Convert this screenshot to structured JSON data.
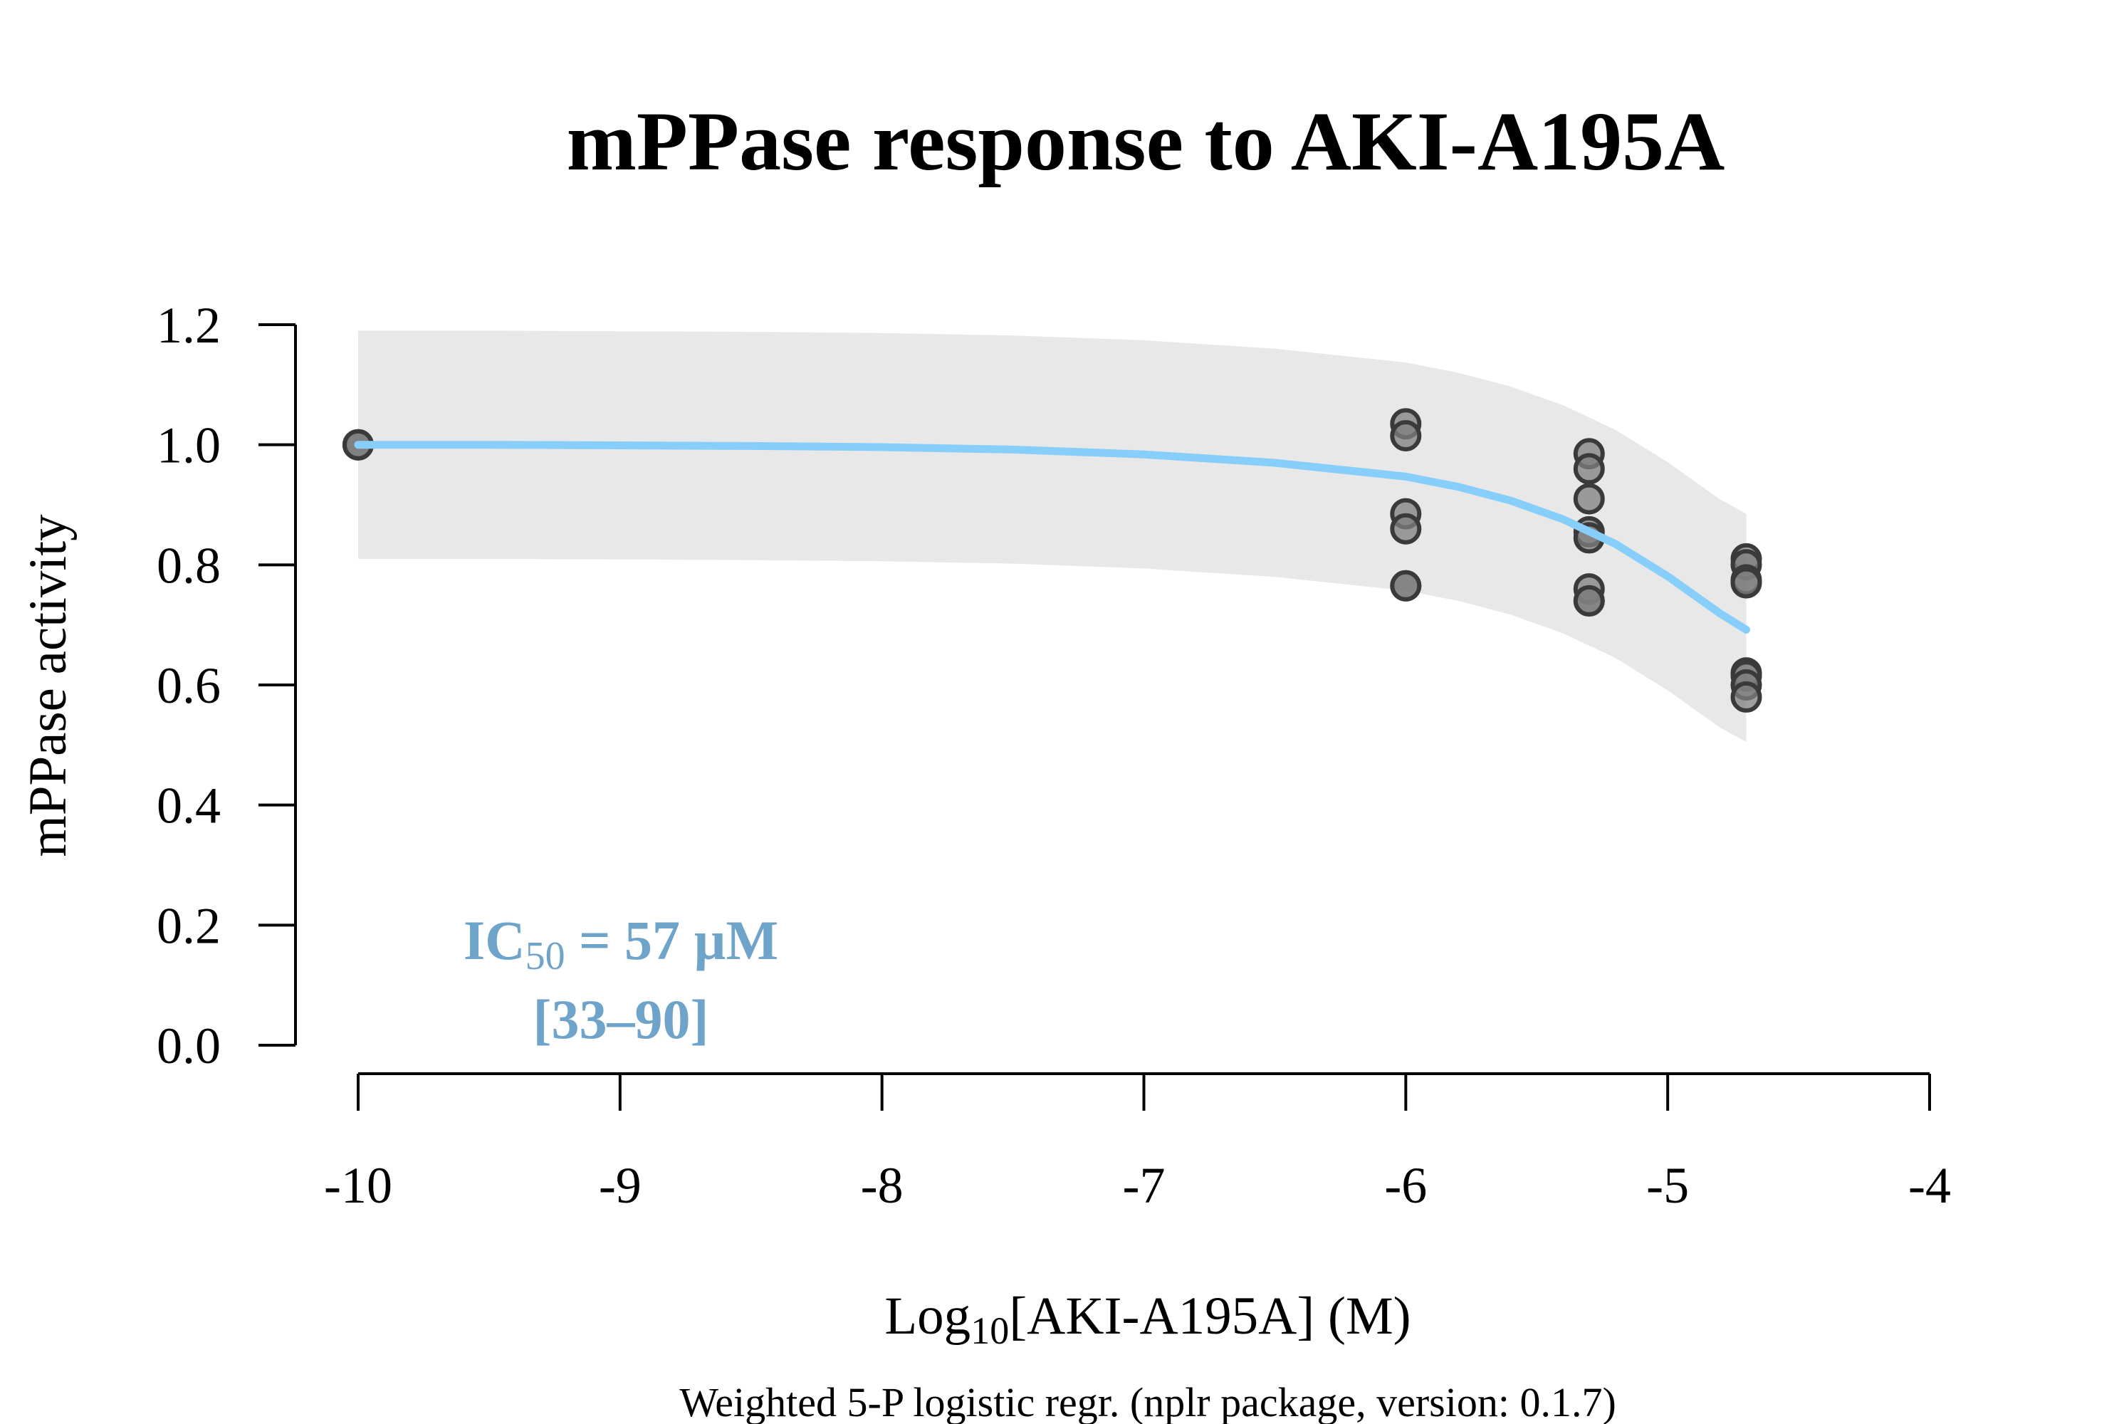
{
  "chart_data": {
    "type": "scatter",
    "title": "mPPase response to AKI-A195A",
    "xlabel": {
      "prefix": "Log",
      "subscript": "10",
      "suffix": "[AKI-A195A] (M)"
    },
    "ylabel": "mPPase activity",
    "caption": "Weighted 5-P logistic regr. (nplr package, version: 0.1.7)",
    "xlim": [
      -10,
      -4
    ],
    "ylim": [
      0,
      1.2
    ],
    "x_ticks": [
      -10,
      -9,
      -8,
      -7,
      -6,
      -5,
      -4
    ],
    "x_tick_labels": [
      "-10",
      "-9",
      "-8",
      "-7",
      "-6",
      "-5",
      "-4"
    ],
    "y_ticks": [
      0,
      0.2,
      0.4,
      0.6,
      0.8,
      1.0,
      1.2
    ],
    "y_tick_labels": [
      "0.0",
      "0.2",
      "0.4",
      "0.6",
      "0.8",
      "1.0",
      "1.2"
    ],
    "grid": false,
    "colors": {
      "fit_line": "#87cefa",
      "confidence_band": "#e8e8e8",
      "point_fill": "#7f7f7f",
      "point_edge": "#3a3a3a",
      "annotation": "#6ea4c9"
    },
    "series": [
      {
        "kind": "points",
        "x": [
          -10,
          -10,
          -10,
          -6,
          -6,
          -6,
          -6,
          -6,
          -6,
          -5.3,
          -5.3,
          -5.3,
          -5.3,
          -5.3,
          -5.3,
          -5.3,
          -5.3,
          -4.7,
          -4.7,
          -4.7,
          -4.7,
          -4.7,
          -4.7,
          -4.7,
          -4.7
        ],
        "y": [
          1.0,
          1.0,
          1.0,
          1.035,
          1.015,
          0.885,
          0.86,
          0.765,
          0.765,
          0.985,
          0.96,
          0.91,
          0.855,
          0.845,
          0.76,
          0.74,
          0.74,
          0.81,
          0.8,
          0.775,
          0.77,
          0.62,
          0.615,
          0.6,
          0.58
        ]
      },
      {
        "kind": "fit",
        "x": [
          -10,
          -9.5,
          -9,
          -8.5,
          -8,
          -7.5,
          -7,
          -6.5,
          -6,
          -5.8,
          -5.6,
          -5.4,
          -5.2,
          -5,
          -4.9,
          -4.8,
          -4.7
        ],
        "y": [
          1.0,
          1.0,
          0.999,
          0.998,
          0.996,
          0.992,
          0.984,
          0.97,
          0.947,
          0.93,
          0.907,
          0.876,
          0.835,
          0.781,
          0.75,
          0.719,
          0.692
        ]
      },
      {
        "kind": "confidence_band",
        "x": [
          -10,
          -9.5,
          -9,
          -8.5,
          -8,
          -7.5,
          -7,
          -6.5,
          -6,
          -5.8,
          -5.6,
          -5.4,
          -5.2,
          -5,
          -4.9,
          -4.8,
          -4.7
        ],
        "upper": [
          1.19,
          1.19,
          1.189,
          1.188,
          1.186,
          1.182,
          1.174,
          1.16,
          1.137,
          1.12,
          1.097,
          1.066,
          1.025,
          0.971,
          0.94,
          0.909,
          0.885
        ],
        "lower": [
          0.81,
          0.81,
          0.809,
          0.808,
          0.806,
          0.802,
          0.794,
          0.78,
          0.757,
          0.74,
          0.717,
          0.686,
          0.645,
          0.591,
          0.56,
          0.529,
          0.505
        ]
      }
    ],
    "annotation": {
      "prefix": "IC",
      "subscript": "50",
      "value": " = 57 µM",
      "interval": "[33–90]"
    }
  }
}
